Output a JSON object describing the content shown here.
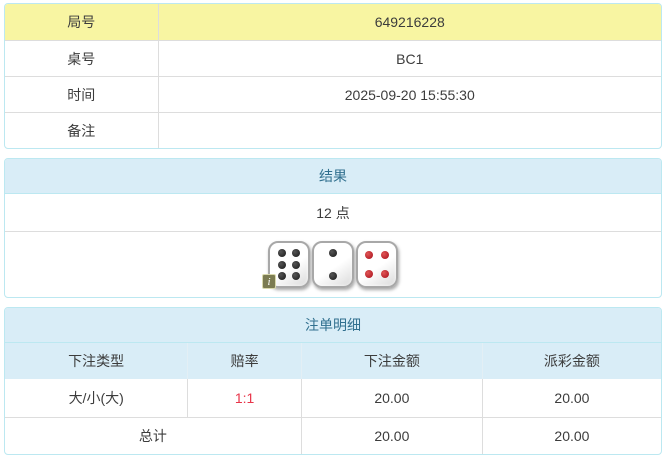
{
  "info_table": {
    "rows": [
      {
        "label": "局号",
        "value": "649216228"
      },
      {
        "label": "桌号",
        "value": "BC1"
      },
      {
        "label": "时间",
        "value": "2025-09-20 15:55:30"
      },
      {
        "label": "备注",
        "value": ""
      }
    ]
  },
  "result_panel": {
    "title": "结果",
    "points": "12 点",
    "dice": [
      {
        "value": 6,
        "color": "black"
      },
      {
        "value": 2,
        "color": "black"
      },
      {
        "value": 4,
        "color": "red"
      }
    ],
    "info_icon": "i"
  },
  "bets_panel": {
    "title": "注单明细",
    "columns": [
      "下注类型",
      "赔率",
      "下注金额",
      "派彩金额"
    ],
    "rows": [
      {
        "type": "大/小(大)",
        "odds": "1:1",
        "bet": "20.00",
        "payout": "20.00"
      }
    ],
    "total": {
      "label": "总计",
      "bet": "20.00",
      "payout": "20.00"
    }
  },
  "colors": {
    "panel_border": "#bce8f1",
    "header_bg": "#d9edf7",
    "header_text": "#31708f",
    "highlight_row": "#f8f5a2",
    "odds_red": "#e8354a",
    "grid_line": "#dddddd",
    "red_pip": "#b8242c"
  }
}
